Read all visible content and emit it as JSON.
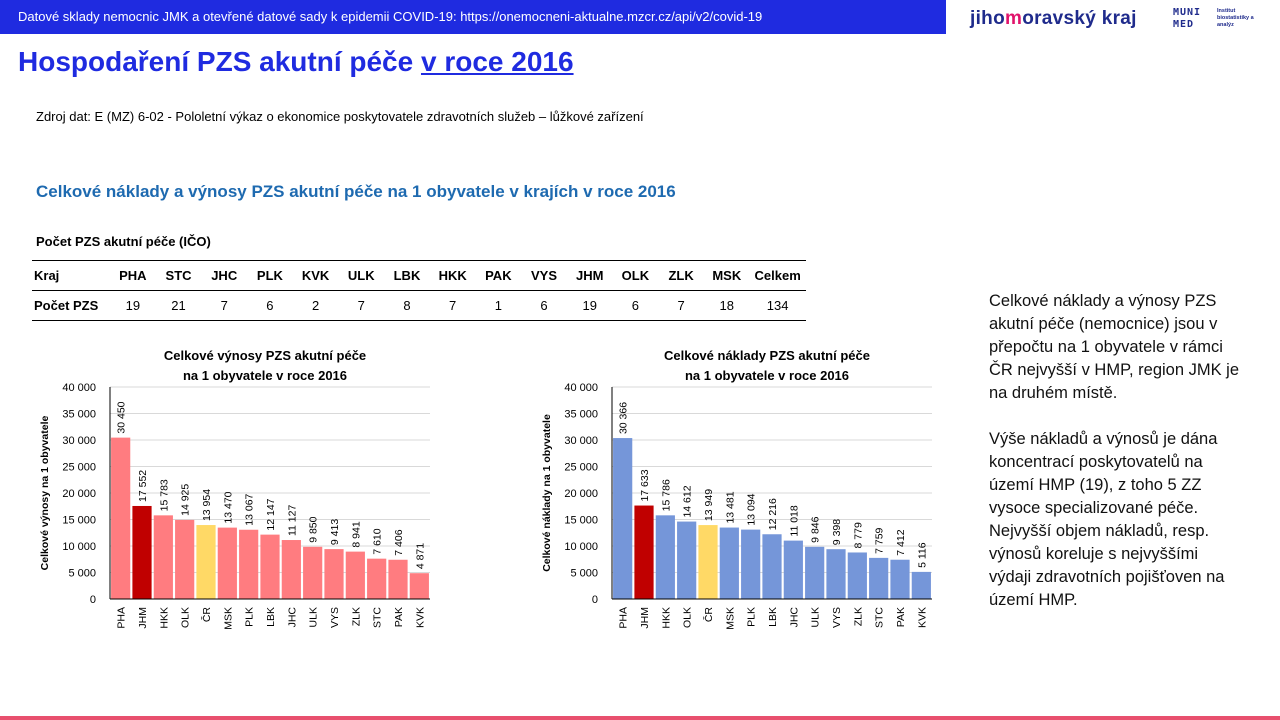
{
  "header": {
    "banner_text": "Datové sklady nemocnic JMK a otevřené datové sady k epidemii COVID-19: https://onemocneni-aktualne.mzcr.cz/api/v2/covid-19",
    "logo_jmk_pre": "jiho",
    "logo_jmk_mid": "m",
    "logo_jmk_post": "oravský kraj",
    "logo_muni_line1": "MUNI",
    "logo_muni_line2": "MED",
    "logo_institute": "Institut biostatistiky a analýz"
  },
  "title": {
    "main": "Hospodaření PZS akutní péče ",
    "underlined": "v roce 2016"
  },
  "source": "Zdroj dat: E (MZ) 6-02 - Pololetní výkaz o ekonomice poskytovatele zdravotních služeb – lůžkové zařízení",
  "subtitle": "Celkové náklady a výnosy PZS akutní péče na 1 obyvatele v krajích v roce 2016",
  "table": {
    "title": "Počet PZS akutní péče (IČO)",
    "row_header_label": "Kraj",
    "row_values_label": "Počet PZS",
    "regions": [
      "PHA",
      "STC",
      "JHC",
      "PLK",
      "KVK",
      "ULK",
      "LBK",
      "HKK",
      "PAK",
      "VYS",
      "JHM",
      "OLK",
      "ZLK",
      "MSK",
      "Celkem"
    ],
    "counts": [
      "19",
      "21",
      "7",
      "6",
      "2",
      "7",
      "8",
      "7",
      "1",
      "6",
      "19",
      "6",
      "7",
      "18",
      "134"
    ]
  },
  "side_text": {
    "p1": "Celkové náklady a výnosy PZS akutní péče (nemocnice) jsou v přepočtu na 1 obyvatele v rámci ČR nejvyšší v HMP, region JMK je na druhém místě.",
    "p2": "Výše nákladů a výnosů je dána koncentrací poskytovatelů na území HMP (19), z toho 5 ZZ vysoce specializované péče. Nejvyšší objem nákladů, resp. výnosů koreluje s nejvyššími výdaji zdravotních pojišťoven na území HMP."
  },
  "chart_data": [
    {
      "type": "bar",
      "title": "Celkové výnosy PZS akutní péče na 1 obyvatele v roce 2016",
      "ylabel": "Celkové výnosy na 1 obyvatele",
      "xlabel": "",
      "ylim": [
        0,
        40000
      ],
      "yticks": [
        0,
        5000,
        10000,
        15000,
        20000,
        25000,
        30000,
        35000,
        40000
      ],
      "ytick_labels": [
        "0",
        "5 000",
        "10 000",
        "15 000",
        "20 000",
        "25 000",
        "30 000",
        "35 000",
        "40 000"
      ],
      "grid": true,
      "categories": [
        "PHA",
        "JHM",
        "HKK",
        "OLK",
        "ČR",
        "MSK",
        "PLK",
        "LBK",
        "JHC",
        "ULK",
        "VYS",
        "ZLK",
        "STC",
        "PAK",
        "KVK"
      ],
      "values": [
        30450,
        17552,
        15783,
        14925,
        13954,
        13470,
        13067,
        12147,
        11127,
        9850,
        9413,
        8941,
        7610,
        7406,
        4871
      ],
      "labels": [
        "30 450",
        "17 552",
        "15 783",
        "14 925",
        "13 954",
        "13 470",
        "13 067",
        "12 147",
        "11 127",
        "9 850",
        "9 413",
        "8 941",
        "7 610",
        "7 406",
        "4 871"
      ],
      "colors": [
        "#ff7c80",
        "#c00000",
        "#ff7c80",
        "#ff7c80",
        "#ffd966",
        "#ff7c80",
        "#ff7c80",
        "#ff7c80",
        "#ff7c80",
        "#ff7c80",
        "#ff7c80",
        "#ff7c80",
        "#ff7c80",
        "#ff7c80",
        "#ff7c80"
      ]
    },
    {
      "type": "bar",
      "title": "Celkové náklady PZS akutní péče na 1 obyvatele v roce 2016",
      "ylabel": "Celkové náklady na 1 obyvatele",
      "xlabel": "",
      "ylim": [
        0,
        40000
      ],
      "yticks": [
        0,
        5000,
        10000,
        15000,
        20000,
        25000,
        30000,
        35000,
        40000
      ],
      "ytick_labels": [
        "0",
        "5 000",
        "10 000",
        "15 000",
        "20 000",
        "25 000",
        "30 000",
        "35 000",
        "40 000"
      ],
      "grid": true,
      "categories": [
        "PHA",
        "JHM",
        "HKK",
        "OLK",
        "ČR",
        "MSK",
        "PLK",
        "LBK",
        "JHC",
        "ULK",
        "VYS",
        "ZLK",
        "STC",
        "PAK",
        "KVK"
      ],
      "values": [
        30366,
        17633,
        15786,
        14612,
        13949,
        13481,
        13094,
        12216,
        11018,
        9846,
        9398,
        8779,
        7759,
        7412,
        5116
      ],
      "labels": [
        "30 366",
        "17 633",
        "15 786",
        "14 612",
        "13 949",
        "13 481",
        "13 094",
        "12 216",
        "11 018",
        "9 846",
        "9 398",
        "8 779",
        "7 759",
        "7 412",
        "5 116"
      ],
      "colors": [
        "#7596d9",
        "#c00000",
        "#7596d9",
        "#7596d9",
        "#ffd966",
        "#7596d9",
        "#7596d9",
        "#7596d9",
        "#7596d9",
        "#7596d9",
        "#7596d9",
        "#7596d9",
        "#7596d9",
        "#7596d9",
        "#7596d9"
      ]
    }
  ]
}
